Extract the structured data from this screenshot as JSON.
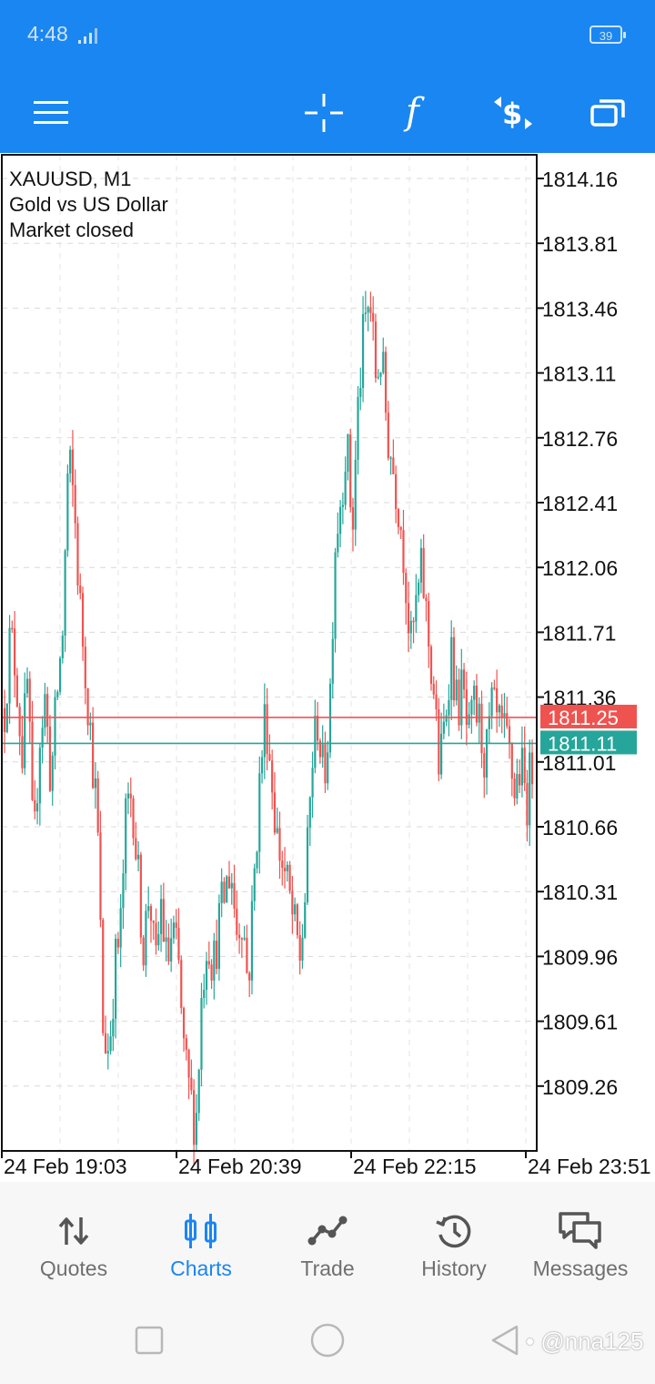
{
  "status_bar": {
    "time": "4:48",
    "battery": "39"
  },
  "toolbar": {
    "icons": [
      "menu-icon",
      "crosshair-icon",
      "indicator-icon",
      "trade-dollar-icon",
      "windows-icon"
    ]
  },
  "chart_info": {
    "symbol": "XAUUSD, M1",
    "description": "Gold vs US Dollar",
    "status": "Market closed"
  },
  "chart_data": {
    "type": "candlestick",
    "symbol": "XAUUSD",
    "timeframe": "M1",
    "ylim": [
      1809.01,
      1814.26
    ],
    "y_ticks": [
      "1814.16",
      "1813.81",
      "1813.46",
      "1813.11",
      "1812.76",
      "1812.41",
      "1812.06",
      "1811.71",
      "1811.36",
      "1811.01",
      "1810.66",
      "1810.31",
      "1809.96",
      "1809.61",
      "1809.26"
    ],
    "x_ticks": [
      "24 Feb 19:03",
      "24 Feb 20:39",
      "24 Feb 22:15",
      "24 Feb 23:51"
    ],
    "ask_price": "1811.25",
    "bid_price": "1811.11",
    "colors": {
      "bull": "#26a69a",
      "bear": "#ef5350",
      "grid": "#d9d9d9",
      "ask_line": "#ef5350",
      "bid_line": "#26a69a"
    },
    "path": [
      1811.3,
      1811.7,
      1811.5,
      1811.05,
      1811.45,
      1810.45,
      1811.15,
      1811.35,
      1810.9,
      1811.35,
      1811.7,
      1812.65,
      1812.4,
      1811.85,
      1811.5,
      1811.1,
      1810.7,
      1809.55,
      1809.45,
      1809.9,
      1810.1,
      1810.75,
      1810.85,
      1810.4,
      1810.0,
      1810.35,
      1809.85,
      1810.25,
      1809.9,
      1810.1,
      1809.9,
      1809.4,
      1809.2,
      1809.05,
      1809.75,
      1810.1,
      1809.9,
      1810.15,
      1810.3,
      1810.45,
      1810.1,
      1810.2,
      1809.8,
      1810.35,
      1810.9,
      1811.3,
      1810.95,
      1810.6,
      1810.45,
      1810.3,
      1810.1,
      1809.95,
      1810.35,
      1811.0,
      1811.25,
      1810.9,
      1811.25,
      1812.2,
      1812.45,
      1812.75,
      1812.25,
      1812.95,
      1813.35,
      1813.5,
      1813.1,
      1813.2,
      1812.8,
      1812.6,
      1812.4,
      1812.1,
      1811.6,
      1811.85,
      1812.05,
      1811.7,
      1811.4,
      1810.95,
      1811.25,
      1811.65,
      1811.3,
      1811.4,
      1811.1,
      1811.3,
      1811.2,
      1811.0,
      1811.3,
      1811.2,
      1811.15,
      1811.05,
      1810.85,
      1811.0,
      1810.8,
      1811.0
    ]
  },
  "bottom_nav": {
    "items": [
      {
        "label": "Quotes",
        "icon": "quotes-arrows-icon"
      },
      {
        "label": "Charts",
        "icon": "charts-candles-icon"
      },
      {
        "label": "Trade",
        "icon": "trade-line-icon"
      },
      {
        "label": "History",
        "icon": "history-clock-icon"
      },
      {
        "label": "Messages",
        "icon": "messages-bubbles-icon"
      }
    ],
    "active_index": 1
  },
  "watermark": "• @nna125"
}
